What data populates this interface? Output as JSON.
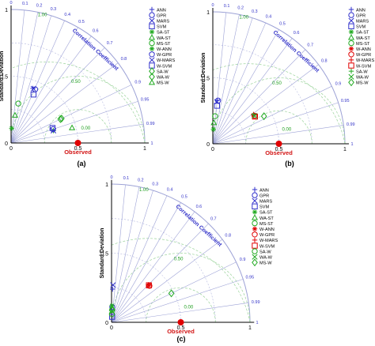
{
  "figure": {
    "panel_labels": [
      "(a)",
      "(b)",
      "(c)"
    ],
    "ylabel": "Standard Deviation",
    "arc_label": "Correlation Coefficient",
    "observed_label": "Observed",
    "radial_ticks": [
      "0",
      "0.5",
      "1"
    ],
    "corr_ticks": [
      "0",
      "0.1",
      "0.2",
      "0.3",
      "0.4",
      "0.5",
      "0.6",
      "0.7",
      "0.8",
      "0.9",
      "0.95",
      "0.99",
      "1"
    ],
    "rms_labels": [
      "0.50",
      "1.00",
      "0.00"
    ],
    "colors": {
      "axis_lines": "#9da2d6",
      "rms_arcs": "#9bd39b",
      "blue_text": "#3232c8",
      "green_text": "#1e9e1e",
      "observed": "#e00000"
    }
  },
  "chart_data": [
    {
      "type": "scatter",
      "subtype": "taylor-diagram",
      "panel": "(a)",
      "xlim": [
        0,
        1
      ],
      "ylim": [
        0,
        1
      ],
      "legend_position": "right",
      "legend": [
        "ANN",
        "GPR",
        "MARS",
        "SVM",
        "SA-ST",
        "WA-ST",
        "MS-ST",
        "W-ANN",
        "W-GPR",
        "W-MARS",
        "W-SVM",
        "SA-W",
        "WA-W",
        "MS-W"
      ],
      "observed": {
        "std": 0.5,
        "corr": 1
      },
      "points": [
        {
          "label": "ANN",
          "std": 0.44,
          "corr": 0.37,
          "color": "#3333cc",
          "marker": "plus"
        },
        {
          "label": "GPR",
          "std": 0.44,
          "corr": 0.41,
          "color": "#3333cc",
          "marker": "circle"
        },
        {
          "label": "MARS",
          "std": 0.44,
          "corr": 0.38,
          "color": "#3333cc",
          "marker": "x"
        },
        {
          "label": "SVM",
          "std": 0.4,
          "corr": 0.42,
          "color": "#3333cc",
          "marker": "square"
        },
        {
          "label": "SA-ST",
          "std": 0.11,
          "corr": 0.04,
          "color": "#22aa22",
          "marker": "star"
        },
        {
          "label": "WA-ST",
          "std": 0.21,
          "corr": 0.14,
          "color": "#22aa22",
          "marker": "triangle"
        },
        {
          "label": "MS-ST",
          "std": 0.3,
          "corr": 0.18,
          "color": "#22aa22",
          "marker": "circle"
        },
        {
          "label": "W-ANN",
          "std": 0.33,
          "corr": 0.96,
          "color": "#22aa22",
          "marker": "star"
        },
        {
          "label": "W-GPR",
          "std": 0.33,
          "corr": 0.95,
          "color": "#3333cc",
          "marker": "circle"
        },
        {
          "label": "W-MARS",
          "std": 0.33,
          "corr": 0.96,
          "color": "#3333cc",
          "marker": "x"
        },
        {
          "label": "W-SVM",
          "std": 0.33,
          "corr": 0.94,
          "color": "#3333cc",
          "marker": "square"
        },
        {
          "label": "SA-W",
          "std": 0.42,
          "corr": 0.9,
          "color": "#22aa22",
          "marker": "diamond"
        },
        {
          "label": "WA-W",
          "std": 0.41,
          "corr": 0.9,
          "color": "#22aa22",
          "marker": "diamond"
        },
        {
          "label": "MS-W",
          "std": 0.47,
          "corr": 0.97,
          "color": "#22aa22",
          "marker": "triangle"
        }
      ]
    },
    {
      "type": "scatter",
      "subtype": "taylor-diagram",
      "panel": "(b)",
      "xlim": [
        0,
        1
      ],
      "ylim": [
        0,
        1
      ],
      "legend_position": "right",
      "legend": [
        "ANN",
        "GPR",
        "MARS",
        "SVM",
        "SA-ST",
        "WA-ST",
        "MS-ST",
        "W-ANN",
        "W-GPR",
        "W-MARS",
        "W-SVM",
        "SA-W",
        "WA-W",
        "MS-W"
      ],
      "observed": {
        "std": 0.5,
        "corr": 1
      },
      "points": [
        {
          "label": "ANN",
          "std": 0.33,
          "corr": 0.1,
          "color": "#3333cc",
          "marker": "plus"
        },
        {
          "label": "GPR",
          "std": 0.33,
          "corr": 0.12,
          "color": "#3333cc",
          "marker": "circle"
        },
        {
          "label": "MARS",
          "std": 0.32,
          "corr": 0.1,
          "color": "#3333cc",
          "marker": "x"
        },
        {
          "label": "SVM",
          "std": 0.29,
          "corr": 0.11,
          "color": "#3333cc",
          "marker": "square"
        },
        {
          "label": "SA-ST",
          "std": 0.11,
          "corr": 0.04,
          "color": "#22aa22",
          "marker": "star"
        },
        {
          "label": "WA-ST",
          "std": 0.16,
          "corr": 0.05,
          "color": "#22aa22",
          "marker": "triangle"
        },
        {
          "label": "MS-ST",
          "std": 0.21,
          "corr": 0.08,
          "color": "#22aa22",
          "marker": "circle"
        },
        {
          "label": "W-ANN",
          "std": 0.38,
          "corr": 0.82,
          "color": "#e00000",
          "marker": "star"
        },
        {
          "label": "W-GPR",
          "std": 0.38,
          "corr": 0.83,
          "color": "#e00000",
          "marker": "circle"
        },
        {
          "label": "W-MARS",
          "std": 0.38,
          "corr": 0.81,
          "color": "#e00000",
          "marker": "plus"
        },
        {
          "label": "W-SVM",
          "std": 0.38,
          "corr": 0.84,
          "color": "#e00000",
          "marker": "square"
        },
        {
          "label": "SA-W",
          "std": 0.38,
          "corr": 0.82,
          "color": "#22aa22",
          "marker": "plus"
        },
        {
          "label": "WA-W",
          "std": 0.38,
          "corr": 0.83,
          "color": "#22aa22",
          "marker": "x"
        },
        {
          "label": "MS-W",
          "std": 0.44,
          "corr": 0.88,
          "color": "#22aa22",
          "marker": "diamond"
        }
      ]
    },
    {
      "type": "scatter",
      "subtype": "taylor-diagram",
      "panel": "(c)",
      "xlim": [
        0,
        1
      ],
      "ylim": [
        0,
        1
      ],
      "legend_position": "right",
      "legend": [
        "ANN",
        "GPR",
        "MARS",
        "SVM",
        "SA-ST",
        "WA-ST",
        "MS-ST",
        "W-ANN",
        "W-GPR",
        "W-MARS",
        "W-SVM",
        "SA-W",
        "WA-W",
        "MS-W"
      ],
      "observed": {
        "std": 0.5,
        "corr": 1
      },
      "points": [
        {
          "label": "ANN",
          "std": 0.24,
          "corr": 0.03,
          "color": "#3333cc",
          "marker": "plus"
        },
        {
          "label": "GPR",
          "std": 0.11,
          "corr": 0.05,
          "color": "#3333cc",
          "marker": "circle"
        },
        {
          "label": "MARS",
          "std": 0.27,
          "corr": 0.04,
          "color": "#3333cc",
          "marker": "x"
        },
        {
          "label": "SVM",
          "std": 0.04,
          "corr": 0.1,
          "color": "#3333cc",
          "marker": "square"
        },
        {
          "label": "SA-ST",
          "std": 0.12,
          "corr": 0.02,
          "color": "#22aa22",
          "marker": "star"
        },
        {
          "label": "WA-ST",
          "std": 0.1,
          "corr": 0.04,
          "color": "#22aa22",
          "marker": "triangle"
        },
        {
          "label": "MS-ST",
          "std": 0.09,
          "corr": 0.05,
          "color": "#22aa22",
          "marker": "circle"
        },
        {
          "label": "W-ANN",
          "std": 0.38,
          "corr": 0.71,
          "color": "#e00000",
          "marker": "star"
        },
        {
          "label": "W-GPR",
          "std": 0.38,
          "corr": 0.72,
          "color": "#e00000",
          "marker": "circle"
        },
        {
          "label": "W-MARS",
          "std": 0.38,
          "corr": 0.7,
          "color": "#e00000",
          "marker": "plus"
        },
        {
          "label": "W-SVM",
          "std": 0.38,
          "corr": 0.71,
          "color": "#e00000",
          "marker": "square"
        },
        {
          "label": "SA-W",
          "std": 0.06,
          "corr": 0.04,
          "color": "#22aa22",
          "marker": "circle"
        },
        {
          "label": "WA-W",
          "std": 0.08,
          "corr": 0.05,
          "color": "#22aa22",
          "marker": "x"
        },
        {
          "label": "MS-W",
          "std": 0.48,
          "corr": 0.9,
          "color": "#22aa22",
          "marker": "diamond"
        }
      ]
    }
  ]
}
